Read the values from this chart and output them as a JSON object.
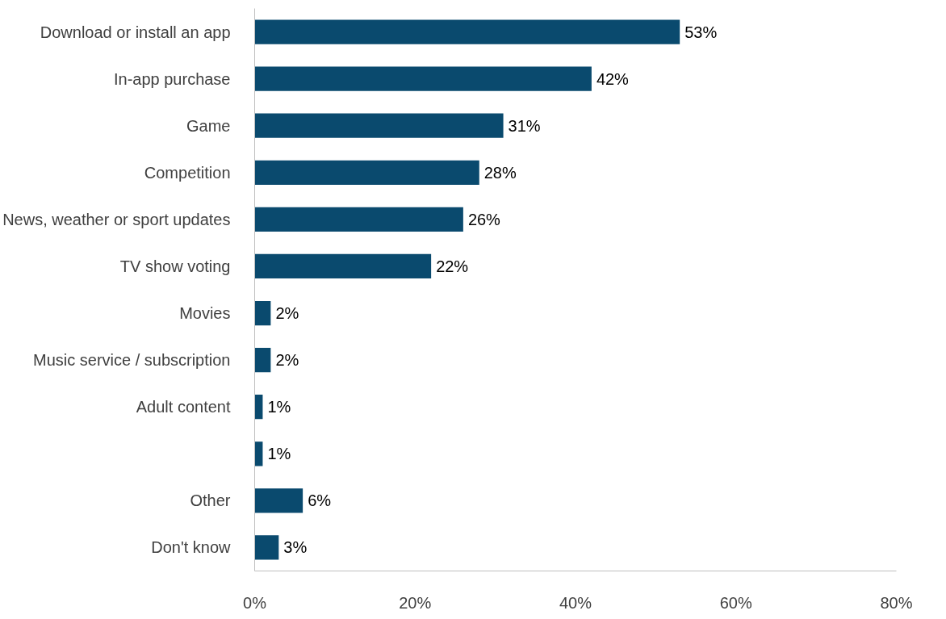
{
  "chart_data": {
    "type": "bar",
    "orientation": "horizontal",
    "categories": [
      "Download or install an app",
      "In-app purchase",
      "Game",
      "Competition",
      "News, weather or sport updates",
      "TV show voting",
      "Movies",
      "Music service / subscription",
      "Adult content",
      null,
      "Other",
      "Don't know"
    ],
    "values": [
      53,
      42,
      31,
      28,
      26,
      22,
      2,
      2,
      1,
      1,
      6,
      3
    ],
    "value_labels": [
      "53%",
      "42%",
      "31%",
      "28%",
      "26%",
      "22%",
      "2%",
      "2%",
      "1%",
      "1%",
      "6%",
      "3%"
    ],
    "color": "#0a4a6e",
    "xlim": [
      0,
      80
    ],
    "xticks": [
      {
        "value": 0,
        "label": "0%"
      },
      {
        "value": 20,
        "label": "20%"
      },
      {
        "value": 40,
        "label": "40%"
      },
      {
        "value": 60,
        "label": "60%"
      },
      {
        "value": 80,
        "label": "80%"
      }
    ]
  }
}
